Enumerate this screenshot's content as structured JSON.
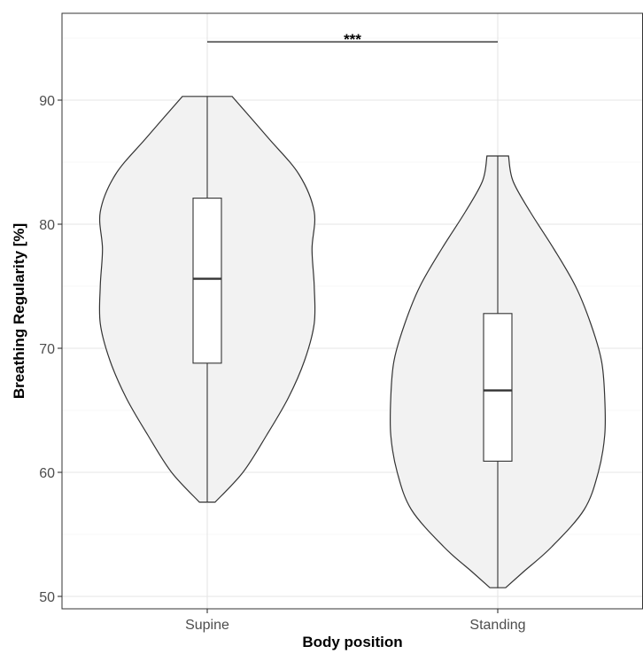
{
  "chart_data": {
    "type": "violin",
    "xlabel": "Body position",
    "ylabel": "Breathing Regularity [%]",
    "categories": [
      "Supine",
      "Standing"
    ],
    "ylim": [
      49,
      97
    ],
    "yticks": [
      50,
      60,
      70,
      80,
      90
    ],
    "ytick_labels": [
      "50",
      "60",
      "70",
      "80",
      "90"
    ],
    "grid": true,
    "violins": [
      {
        "category": "Supine",
        "min": 57.6,
        "q1": 68.8,
        "median": 75.6,
        "q3": 82.1,
        "max": 90.3,
        "density_profile": [
          {
            "y": 57.6,
            "w": 0.073
          },
          {
            "y": 60.0,
            "w": 0.33
          },
          {
            "y": 63.0,
            "w": 0.55
          },
          {
            "y": 66.0,
            "w": 0.75
          },
          {
            "y": 69.0,
            "w": 0.9
          },
          {
            "y": 72.0,
            "w": 0.99
          },
          {
            "y": 75.0,
            "w": 0.99
          },
          {
            "y": 78.0,
            "w": 0.97
          },
          {
            "y": 81.0,
            "w": 0.99
          },
          {
            "y": 84.0,
            "w": 0.85
          },
          {
            "y": 87.0,
            "w": 0.56
          },
          {
            "y": 90.3,
            "w": 0.23
          }
        ]
      },
      {
        "category": "Standing",
        "min": 50.7,
        "q1": 60.9,
        "median": 66.6,
        "q3": 72.8,
        "max": 85.5,
        "density_profile": [
          {
            "y": 50.7,
            "w": 0.073
          },
          {
            "y": 52.0,
            "w": 0.24
          },
          {
            "y": 54.0,
            "w": 0.5
          },
          {
            "y": 57.0,
            "w": 0.8
          },
          {
            "y": 60.0,
            "w": 0.93
          },
          {
            "y": 63.0,
            "w": 0.99
          },
          {
            "y": 66.0,
            "w": 0.99
          },
          {
            "y": 69.0,
            "w": 0.96
          },
          {
            "y": 72.0,
            "w": 0.86
          },
          {
            "y": 75.0,
            "w": 0.72
          },
          {
            "y": 78.0,
            "w": 0.52
          },
          {
            "y": 81.0,
            "w": 0.3
          },
          {
            "y": 83.5,
            "w": 0.14
          },
          {
            "y": 85.5,
            "w": 0.1
          }
        ]
      }
    ],
    "significance": {
      "from": "Supine",
      "to": "Standing",
      "y": 94.7,
      "label": "***"
    },
    "colors": {
      "violin_fill": "#f2f2f2",
      "outline": "#333333",
      "box_fill": "#ffffff",
      "grid": "#e5e5e5"
    }
  }
}
